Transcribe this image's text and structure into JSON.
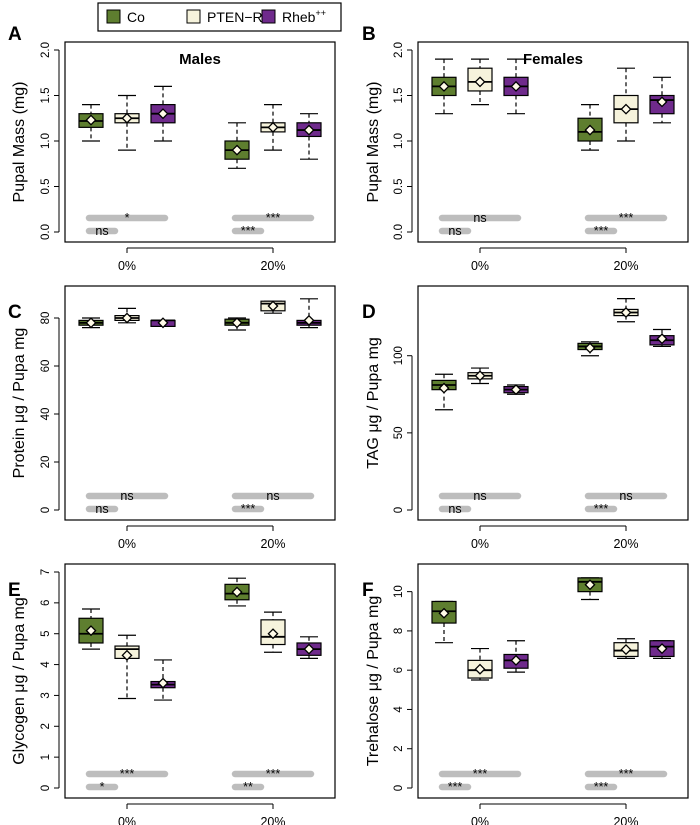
{
  "legend": {
    "entries": [
      {
        "label": "Co",
        "color": "#5e7e2f"
      },
      {
        "label": "PTEN−Ri",
        "color": "#f6f3dc"
      },
      {
        "label": "Rheb",
        "sup": "++",
        "color": "#6f2a8c"
      }
    ]
  },
  "chart_data": [
    {
      "id": "A",
      "type": "box",
      "title": "Males",
      "ylabel": "Pupal Mass (mg)",
      "ylim": [
        0,
        2.0
      ],
      "yticks": [
        "0.0",
        "0.5",
        "1.0",
        "1.5",
        "2.0"
      ],
      "ytick_values": [
        0,
        0.5,
        1.0,
        1.5,
        2.0
      ],
      "categories": [
        "0%",
        "20%"
      ],
      "series": [
        {
          "name": "Co",
          "boxes": [
            {
              "whisker_low": 1.0,
              "q1": 1.15,
              "median": 1.22,
              "q3": 1.3,
              "whisker_high": 1.4,
              "mean": 1.23
            },
            {
              "whisker_low": 0.7,
              "q1": 0.8,
              "median": 0.9,
              "q3": 1.0,
              "whisker_high": 1.2,
              "mean": 0.9
            }
          ]
        },
        {
          "name": "PTEN−Ri",
          "boxes": [
            {
              "whisker_low": 0.9,
              "q1": 1.2,
              "median": 1.25,
              "q3": 1.3,
              "whisker_high": 1.5,
              "mean": 1.25
            },
            {
              "whisker_low": 0.9,
              "q1": 1.1,
              "median": 1.15,
              "q3": 1.2,
              "whisker_high": 1.4,
              "mean": 1.15
            }
          ]
        },
        {
          "name": "Rheb++",
          "boxes": [
            {
              "whisker_low": 1.0,
              "q1": 1.2,
              "median": 1.3,
              "q3": 1.4,
              "whisker_high": 1.6,
              "mean": 1.3
            },
            {
              "whisker_low": 0.8,
              "q1": 1.05,
              "median": 1.12,
              "q3": 1.2,
              "whisker_high": 1.3,
              "mean": 1.12
            }
          ]
        }
      ],
      "significance": [
        {
          "category": "0%",
          "upper": "*",
          "lower": "ns"
        },
        {
          "category": "20%",
          "upper": "***",
          "lower": "***"
        }
      ]
    },
    {
      "id": "B",
      "type": "box",
      "title": "Females",
      "ylabel": "Pupal Mass (mg)",
      "ylim": [
        0,
        2.0
      ],
      "yticks": [
        "0.0",
        "0.5",
        "1.0",
        "1.5",
        "2.0"
      ],
      "ytick_values": [
        0,
        0.5,
        1.0,
        1.5,
        2.0
      ],
      "categories": [
        "0%",
        "20%"
      ],
      "series": [
        {
          "name": "Co",
          "boxes": [
            {
              "whisker_low": 1.3,
              "q1": 1.5,
              "median": 1.6,
              "q3": 1.7,
              "whisker_high": 1.9,
              "mean": 1.6
            },
            {
              "whisker_low": 0.9,
              "q1": 1.0,
              "median": 1.1,
              "q3": 1.25,
              "whisker_high": 1.4,
              "mean": 1.12
            }
          ]
        },
        {
          "name": "PTEN−Ri",
          "boxes": [
            {
              "whisker_low": 1.4,
              "q1": 1.55,
              "median": 1.65,
              "q3": 1.8,
              "whisker_high": 1.9,
              "mean": 1.65
            },
            {
              "whisker_low": 1.0,
              "q1": 1.2,
              "median": 1.35,
              "q3": 1.5,
              "whisker_high": 1.8,
              "mean": 1.35
            }
          ]
        },
        {
          "name": "Rheb++",
          "boxes": [
            {
              "whisker_low": 1.3,
              "q1": 1.5,
              "median": 1.6,
              "q3": 1.7,
              "whisker_high": 1.9,
              "mean": 1.6
            },
            {
              "whisker_low": 1.2,
              "q1": 1.3,
              "median": 1.45,
              "q3": 1.5,
              "whisker_high": 1.7,
              "mean": 1.43
            }
          ]
        }
      ],
      "significance": [
        {
          "category": "0%",
          "upper": "ns",
          "lower": "ns"
        },
        {
          "category": "20%",
          "upper": "***",
          "lower": "***"
        }
      ]
    },
    {
      "id": "C",
      "type": "box",
      "title": "",
      "ylabel": "Protein μg / Pupa mg",
      "ylim": [
        0,
        90
      ],
      "yticks": [
        "0",
        "20",
        "40",
        "60",
        "80"
      ],
      "ytick_values": [
        0,
        20,
        40,
        60,
        80
      ],
      "categories": [
        "0%",
        "20%"
      ],
      "series": [
        {
          "name": "Co",
          "boxes": [
            {
              "whisker_low": 76,
              "q1": 77,
              "median": 78,
              "q3": 79,
              "whisker_high": 80,
              "mean": 78
            },
            {
              "whisker_low": 75,
              "q1": 77,
              "median": 78,
              "q3": 79.5,
              "whisker_high": 80,
              "mean": 78
            }
          ]
        },
        {
          "name": "PTEN−Ri",
          "boxes": [
            {
              "whisker_low": 78,
              "q1": 79,
              "median": 80,
              "q3": 81,
              "whisker_high": 84,
              "mean": 80
            },
            {
              "whisker_low": 82,
              "q1": 83,
              "median": 86,
              "q3": 87,
              "whisker_high": 87,
              "mean": 85
            }
          ]
        },
        {
          "name": "Rheb++",
          "boxes": [
            {
              "whisker_low": 76.5,
              "q1": 76.5,
              "median": 79,
              "q3": 79,
              "whisker_high": 79,
              "mean": 78
            },
            {
              "whisker_low": 76,
              "q1": 77,
              "median": 78,
              "q3": 79,
              "whisker_high": 88,
              "mean": 79
            }
          ]
        }
      ],
      "significance": [
        {
          "category": "0%",
          "upper": "ns",
          "lower": "ns"
        },
        {
          "category": "20%",
          "upper": "ns",
          "lower": "***"
        }
      ]
    },
    {
      "id": "D",
      "type": "box",
      "title": "",
      "ylabel": "TAG μg / Pupa mg",
      "ylim": [
        0,
        140
      ],
      "yticks": [
        "0",
        "50",
        "100"
      ],
      "ytick_values": [
        0,
        50,
        100
      ],
      "categories": [
        "0%",
        "20%"
      ],
      "series": [
        {
          "name": "Co",
          "boxes": [
            {
              "whisker_low": 65,
              "q1": 78,
              "median": 81,
              "q3": 84,
              "whisker_high": 88,
              "mean": 79
            },
            {
              "whisker_low": 100,
              "q1": 104,
              "median": 106,
              "q3": 108,
              "whisker_high": 109,
              "mean": 105
            }
          ]
        },
        {
          "name": "PTEN−Ri",
          "boxes": [
            {
              "whisker_low": 82,
              "q1": 85,
              "median": 87,
              "q3": 89,
              "whisker_high": 92,
              "mean": 87
            },
            {
              "whisker_low": 122,
              "q1": 126,
              "median": 128,
              "q3": 130,
              "whisker_high": 137,
              "mean": 128
            }
          ]
        },
        {
          "name": "Rheb++",
          "boxes": [
            {
              "whisker_low": 75,
              "q1": 76,
              "median": 78,
              "q3": 80,
              "whisker_high": 81,
              "mean": 78
            },
            {
              "whisker_low": 106,
              "q1": 107,
              "median": 110,
              "q3": 113,
              "whisker_high": 117,
              "mean": 111
            }
          ]
        }
      ],
      "significance": [
        {
          "category": "0%",
          "upper": "ns",
          "lower": "ns"
        },
        {
          "category": "20%",
          "upper": "ns",
          "lower": "***"
        }
      ]
    },
    {
      "id": "E",
      "type": "box",
      "title": "",
      "ylabel": "Glycogen μg / Pupa mg",
      "ylim": [
        0,
        7
      ],
      "yticks": [
        "0",
        "1",
        "2",
        "3",
        "4",
        "5",
        "6",
        "7"
      ],
      "ytick_values": [
        0,
        1,
        2,
        3,
        4,
        5,
        6,
        7
      ],
      "categories": [
        "0%",
        "20%"
      ],
      "series": [
        {
          "name": "Co",
          "boxes": [
            {
              "whisker_low": 4.5,
              "q1": 4.7,
              "median": 5.0,
              "q3": 5.5,
              "whisker_high": 5.8,
              "mean": 5.1
            },
            {
              "whisker_low": 5.9,
              "q1": 6.1,
              "median": 6.3,
              "q3": 6.6,
              "whisker_high": 6.8,
              "mean": 6.35
            }
          ]
        },
        {
          "name": "PTEN−Ri",
          "boxes": [
            {
              "whisker_low": 2.9,
              "q1": 4.2,
              "median": 4.5,
              "q3": 4.6,
              "whisker_high": 4.95,
              "mean": 4.3
            },
            {
              "whisker_low": 4.4,
              "q1": 4.65,
              "median": 4.9,
              "q3": 5.45,
              "whisker_high": 5.7,
              "mean": 5.0
            }
          ]
        },
        {
          "name": "Rheb++",
          "boxes": [
            {
              "whisker_low": 2.85,
              "q1": 3.25,
              "median": 3.35,
              "q3": 3.45,
              "whisker_high": 4.15,
              "mean": 3.4
            },
            {
              "whisker_low": 4.2,
              "q1": 4.3,
              "median": 4.5,
              "q3": 4.7,
              "whisker_high": 4.9,
              "mean": 4.5
            }
          ]
        }
      ],
      "significance": [
        {
          "category": "0%",
          "upper": "***",
          "lower": "*"
        },
        {
          "category": "20%",
          "upper": "***",
          "lower": "**"
        }
      ]
    },
    {
      "id": "F",
      "type": "box",
      "title": "",
      "ylabel": "Trehalose μg / Pupa mg",
      "ylim": [
        0,
        11
      ],
      "yticks": [
        "0",
        "2",
        "4",
        "6",
        "8",
        "10"
      ],
      "ytick_values": [
        0,
        2,
        4,
        6,
        8,
        10
      ],
      "categories": [
        "0%",
        "20%"
      ],
      "series": [
        {
          "name": "Co",
          "boxes": [
            {
              "whisker_low": 7.4,
              "q1": 8.4,
              "median": 9.0,
              "q3": 9.5,
              "whisker_high": 9.5,
              "mean": 8.9
            },
            {
              "whisker_low": 9.6,
              "q1": 10.0,
              "median": 10.5,
              "q3": 10.7,
              "whisker_high": 10.7,
              "mean": 10.35
            }
          ]
        },
        {
          "name": "PTEN−Ri",
          "boxes": [
            {
              "whisker_low": 5.5,
              "q1": 5.6,
              "median": 6.0,
              "q3": 6.5,
              "whisker_high": 7.1,
              "mean": 6.05
            },
            {
              "whisker_low": 6.6,
              "q1": 6.7,
              "median": 7.0,
              "q3": 7.4,
              "whisker_high": 7.6,
              "mean": 7.05
            }
          ]
        },
        {
          "name": "Rheb++",
          "boxes": [
            {
              "whisker_low": 5.9,
              "q1": 6.1,
              "median": 6.5,
              "q3": 6.8,
              "whisker_high": 7.5,
              "mean": 6.5
            },
            {
              "whisker_low": 6.6,
              "q1": 6.7,
              "median": 7.2,
              "q3": 7.5,
              "whisker_high": 7.5,
              "mean": 7.1
            }
          ]
        }
      ],
      "significance": [
        {
          "category": "0%",
          "upper": "***",
          "lower": "***"
        },
        {
          "category": "20%",
          "upper": "***",
          "lower": "***"
        }
      ]
    }
  ]
}
